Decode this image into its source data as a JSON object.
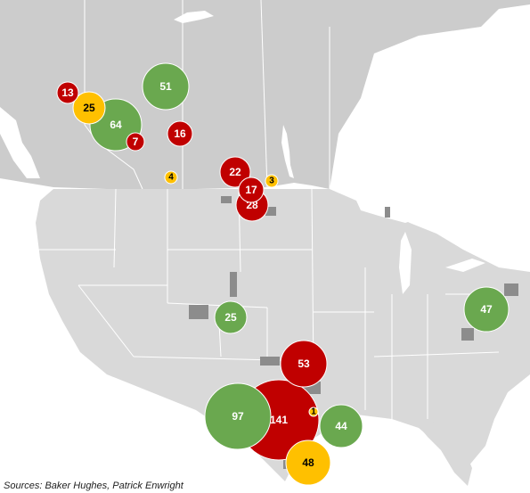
{
  "legend_colors": {
    "green": "#6aa84f",
    "red": "#c00000",
    "yellow": "#ffc000"
  },
  "land_color": "#d9d9d9",
  "canada_color": "#cccccc",
  "border_color": "#ffffff",
  "basin_color": "#8c8c8c",
  "bubbles": [
    {
      "id": "b13",
      "value": 13,
      "color": "red"
    },
    {
      "id": "b25a",
      "value": 25,
      "color": "yellow"
    },
    {
      "id": "b64",
      "value": 64,
      "color": "green"
    },
    {
      "id": "b7",
      "value": 7,
      "color": "red"
    },
    {
      "id": "b51",
      "value": 51,
      "color": "green"
    },
    {
      "id": "b16",
      "value": 16,
      "color": "red"
    },
    {
      "id": "b4",
      "value": 4,
      "color": "yellow"
    },
    {
      "id": "b22",
      "value": 22,
      "color": "red"
    },
    {
      "id": "b3",
      "value": 3,
      "color": "yellow"
    },
    {
      "id": "b17",
      "value": 17,
      "color": "red"
    },
    {
      "id": "b28",
      "value": 28,
      "color": "red"
    },
    {
      "id": "b25b",
      "value": 25,
      "color": "green"
    },
    {
      "id": "b47",
      "value": 47,
      "color": "green"
    },
    {
      "id": "b53",
      "value": 53,
      "color": "red"
    },
    {
      "id": "b141",
      "value": 141,
      "color": "red"
    },
    {
      "id": "b97",
      "value": 97,
      "color": "green"
    },
    {
      "id": "b1",
      "value": 1,
      "color": "yellow"
    },
    {
      "id": "b44",
      "value": 44,
      "color": "green"
    },
    {
      "id": "b48",
      "value": 48,
      "color": "yellow"
    }
  ],
  "source_note": "Sources: Baker Hughes, Patrick Enwright"
}
